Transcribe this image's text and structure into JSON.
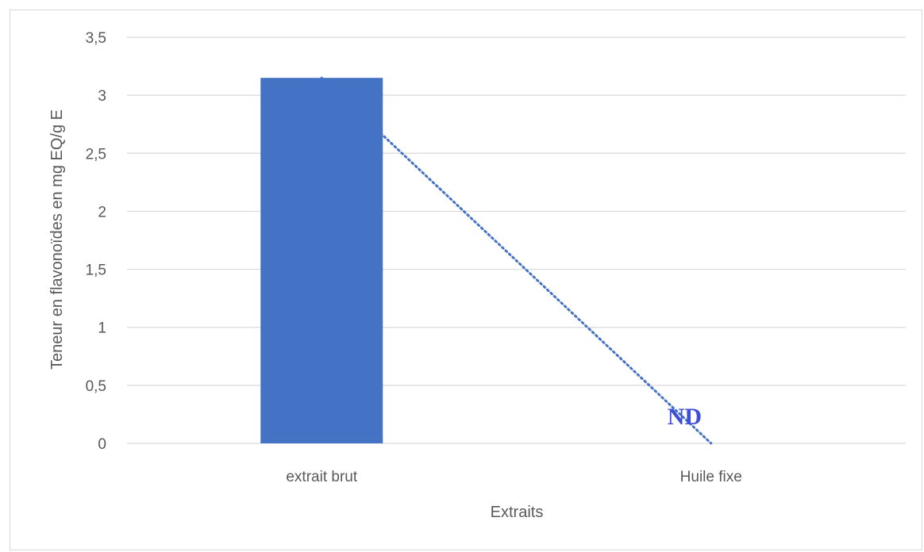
{
  "chart_data": {
    "type": "bar",
    "categories": [
      "extrait brut",
      "Huile fixe"
    ],
    "values": [
      3.15,
      0
    ],
    "ylim": [
      0,
      3.5
    ],
    "yticks": [
      "0",
      "0,5",
      "1",
      "1,5",
      "2",
      "2,5",
      "3",
      "3,5"
    ],
    "xlabel": "Extraits",
    "ylabel": "Teneur en flavonoïdes en mg EQ/g E",
    "annotations": [
      {
        "category": "Huile fixe",
        "text": "ND"
      }
    ],
    "trendline": {
      "style": "dotted",
      "type": "linear"
    },
    "grid": true,
    "legend": "none",
    "colors": {
      "bar": "#4472c4",
      "trendline": "#4472c4",
      "annotation": "#3d4fd8",
      "grid": "#d9d9d9",
      "text": "#595959"
    }
  }
}
